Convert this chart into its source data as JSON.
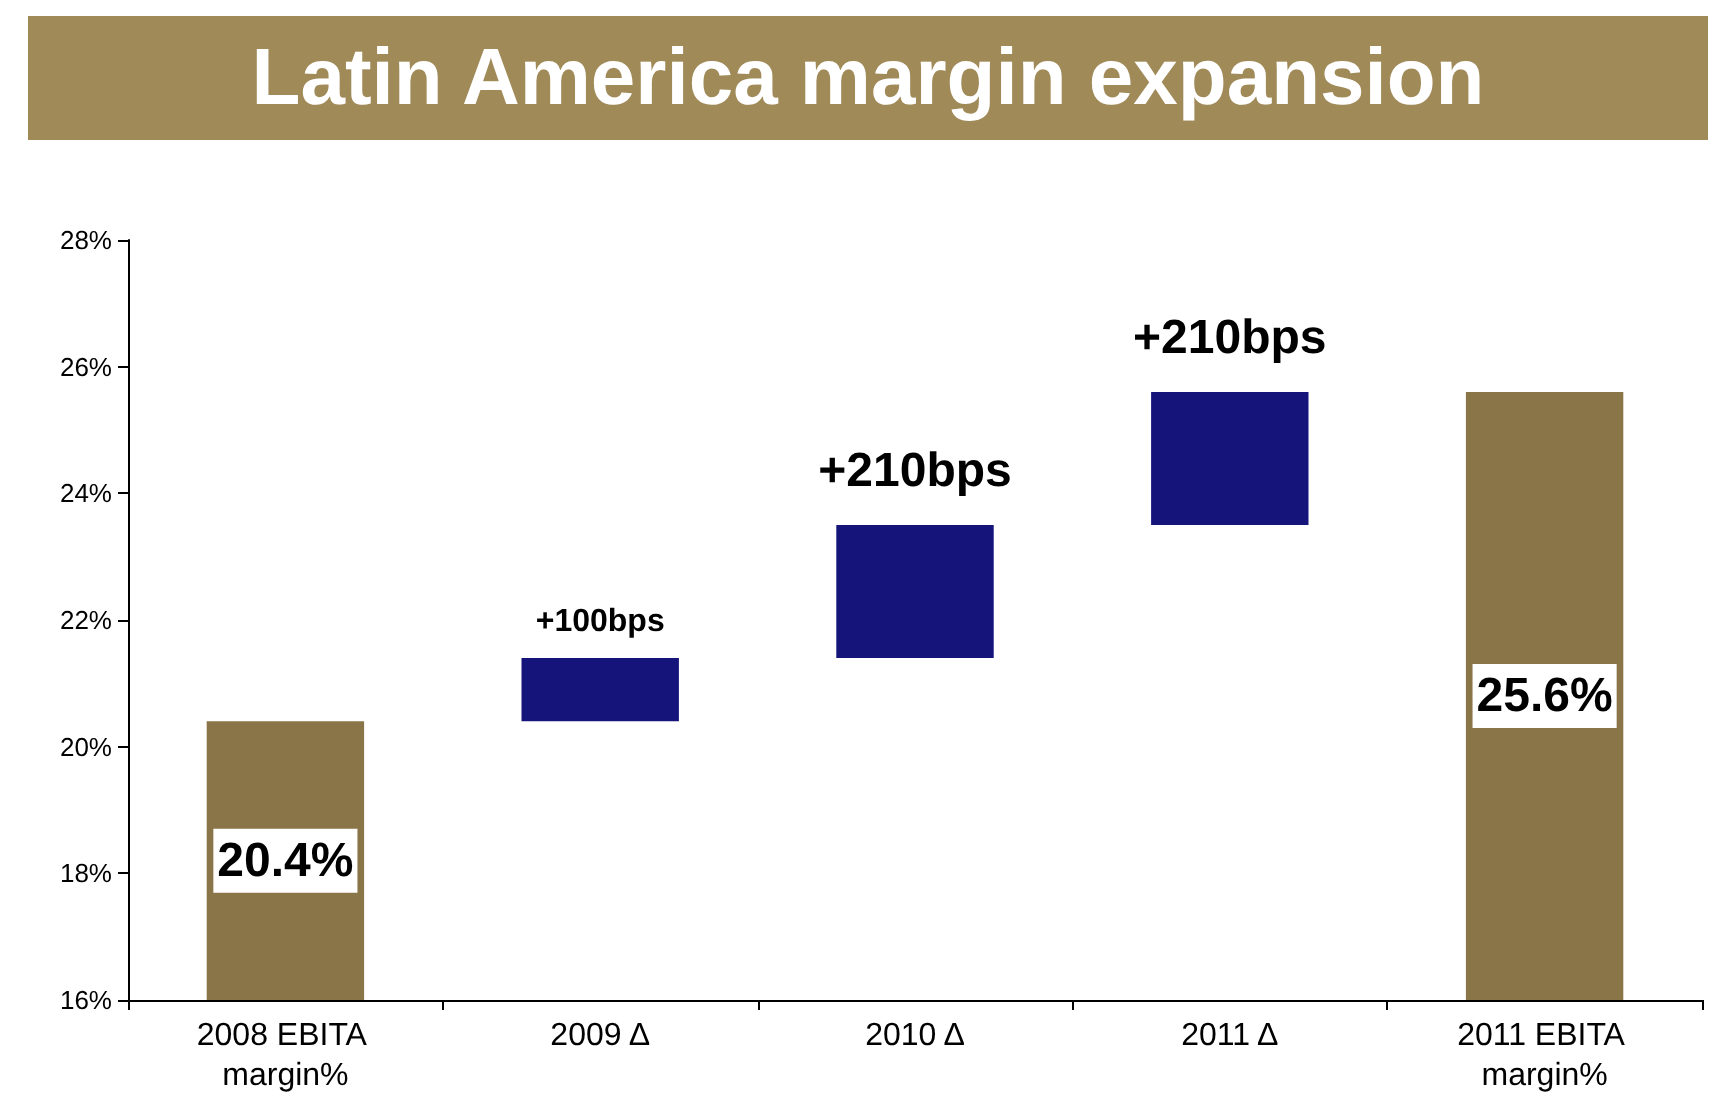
{
  "chart_data": {
    "type": "bar",
    "title": "Latin America margin expansion",
    "categories": [
      "2008 EBITA margin%",
      "2009 Δ",
      "2010 Δ",
      "2011 Δ",
      "2011 EBITA margin%"
    ],
    "values": [
      4.4,
      1.0,
      2.1,
      2.1,
      9.6
    ],
    "base": [
      16,
      20.4,
      21.4,
      23.5,
      16
    ],
    "colors": [
      "#8a7548",
      "#14147a",
      "#14147a",
      "#14147a",
      "#8a7548"
    ],
    "value_labels": [
      "20.4%",
      null,
      null,
      null,
      "25.6%"
    ],
    "annotations": [
      {
        "text": "+100bps",
        "x": "2009 Δ",
        "y": 21.4
      },
      {
        "text": "+210bps",
        "x": "2010 Δ",
        "y": 23.5
      },
      {
        "text": "+210bps",
        "x": "2011 Δ",
        "y": 25.6
      }
    ],
    "ylim": [
      16,
      28
    ],
    "yticks": [
      {
        "value": 16,
        "label": "16%"
      },
      {
        "value": 18,
        "label": "18%"
      },
      {
        "value": 20,
        "label": "20%"
      },
      {
        "value": 22,
        "label": "22%"
      },
      {
        "value": 24,
        "label": "24%"
      },
      {
        "value": 26,
        "label": "26%"
      },
      {
        "value": 28,
        "label": "28%"
      }
    ],
    "grid": false
  }
}
